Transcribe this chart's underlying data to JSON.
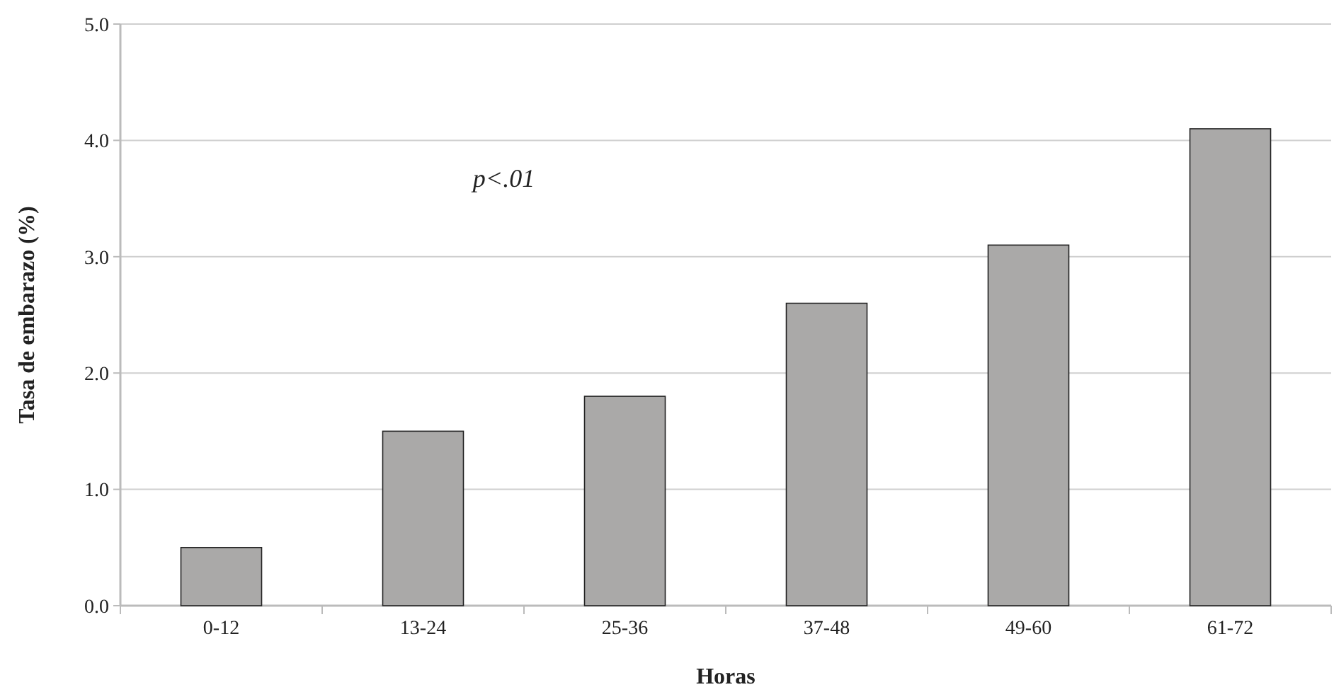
{
  "chart_data": {
    "type": "bar",
    "xlabel": "Horas",
    "ylabel": "Tasa de embarazo (%)",
    "categories": [
      "0-12",
      "13-24",
      "25-36",
      "37-48",
      "49-60",
      "61-72"
    ],
    "values": [
      0.5,
      1.5,
      1.8,
      2.6,
      3.1,
      4.1
    ],
    "color": "#aaa9a8",
    "ylim": [
      0,
      5
    ],
    "yticks": [
      {
        "value": 0,
        "label": "0.0"
      },
      {
        "value": 1,
        "label": "1.0"
      },
      {
        "value": 2,
        "label": "2.0"
      },
      {
        "value": 3,
        "label": "3.0"
      },
      {
        "value": 4,
        "label": "4.0"
      },
      {
        "value": 5,
        "label": "5.0"
      }
    ],
    "grid": "y",
    "annotations": [
      "p<.01"
    ]
  }
}
